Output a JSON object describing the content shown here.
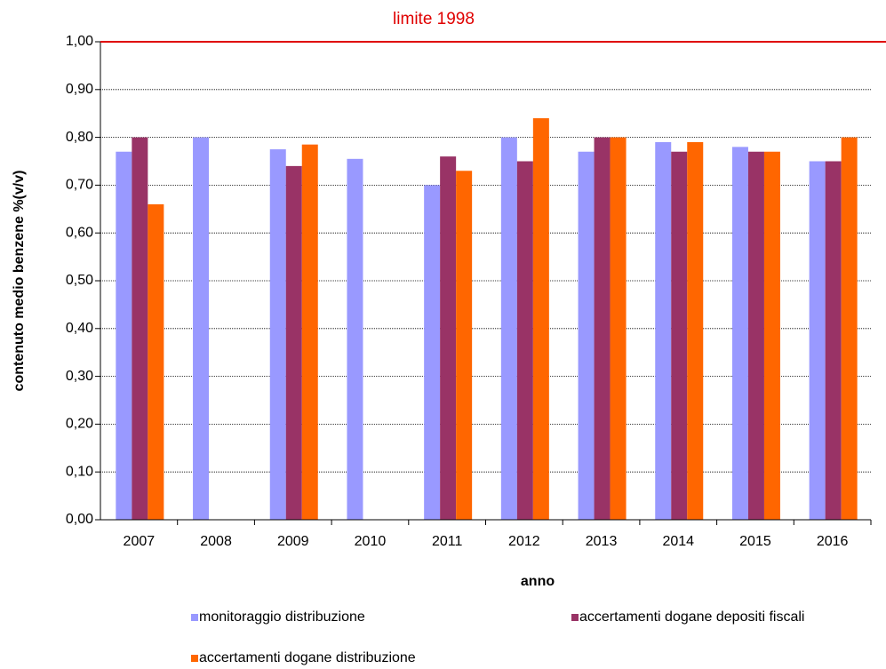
{
  "chart_data": {
    "type": "bar",
    "x_label": "anno",
    "y_label": "contenuto medio benzene %(v/v)",
    "categories": [
      "2007",
      "2008",
      "2009",
      "2010",
      "2011",
      "2012",
      "2013",
      "2014",
      "2015",
      "2016"
    ],
    "series": [
      {
        "name": "monitoraggio distribuzione",
        "color": "#9999ff",
        "values": [
          0.77,
          0.8,
          0.775,
          0.755,
          0.7,
          0.8,
          0.77,
          0.79,
          0.78,
          0.75
        ]
      },
      {
        "name": "accertamenti dogane depositi fiscali",
        "color": "#993366",
        "values": [
          0.8,
          null,
          0.74,
          null,
          0.76,
          0.75,
          0.8,
          0.77,
          0.77,
          0.75
        ]
      },
      {
        "name": "accertamenti dogane distribuzione",
        "color": "#ff6600",
        "values": [
          0.66,
          null,
          0.785,
          null,
          0.73,
          0.84,
          0.8,
          0.79,
          0.77,
          0.8
        ]
      }
    ],
    "ylim": [
      0,
      1
    ],
    "yticks": [
      {
        "value": 0,
        "label": "0,00"
      },
      {
        "value": 0.1,
        "label": "0,10"
      },
      {
        "value": 0.2,
        "label": "0,20"
      },
      {
        "value": 0.3,
        "label": "0,30"
      },
      {
        "value": 0.4,
        "label": "0,40"
      },
      {
        "value": 0.5,
        "label": "0,50"
      },
      {
        "value": 0.6,
        "label": "0,60"
      },
      {
        "value": 0.7,
        "label": "0,70"
      },
      {
        "value": 0.8,
        "label": "0,80"
      },
      {
        "value": 0.9,
        "label": "0,90"
      },
      {
        "value": 1,
        "label": "1,00"
      }
    ],
    "grid": true,
    "reference_line": {
      "value": 1,
      "label": "limite 1998",
      "color": "#e00000"
    },
    "legend": "bottom"
  }
}
